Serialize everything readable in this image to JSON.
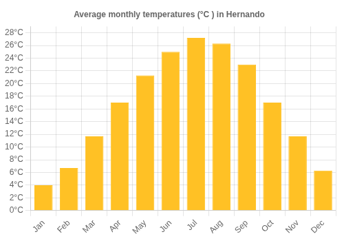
{
  "chart_data": {
    "type": "bar",
    "title": "Average monthly temperatures (°C ) in Hernando",
    "categories": [
      "Jan",
      "Feb",
      "Mar",
      "Apr",
      "May",
      "Jun",
      "Jul",
      "Aug",
      "Sep",
      "Oct",
      "Nov",
      "Dec"
    ],
    "values": [
      4,
      6.7,
      11.7,
      17,
      21.3,
      25,
      27.2,
      26.3,
      23,
      17,
      11.7,
      6.3
    ],
    "color": "#FFC125",
    "ylim": [
      0,
      29
    ],
    "yticks": [
      {
        "value": 0,
        "label": "0°C"
      },
      {
        "value": 2,
        "label": "2°C"
      },
      {
        "value": 4,
        "label": "4°C"
      },
      {
        "value": 6,
        "label": "6°C"
      },
      {
        "value": 8,
        "label": "8°C"
      },
      {
        "value": 10,
        "label": "10°C"
      },
      {
        "value": 12,
        "label": "12°C"
      },
      {
        "value": 14,
        "label": "14°C"
      },
      {
        "value": 16,
        "label": "16°C"
      },
      {
        "value": 18,
        "label": "18°C"
      },
      {
        "value": 20,
        "label": "20°C"
      },
      {
        "value": 22,
        "label": "22°C"
      },
      {
        "value": 24,
        "label": "24°C"
      },
      {
        "value": 26,
        "label": "26°C"
      },
      {
        "value": 28,
        "label": "28°C"
      }
    ],
    "grid": true
  }
}
